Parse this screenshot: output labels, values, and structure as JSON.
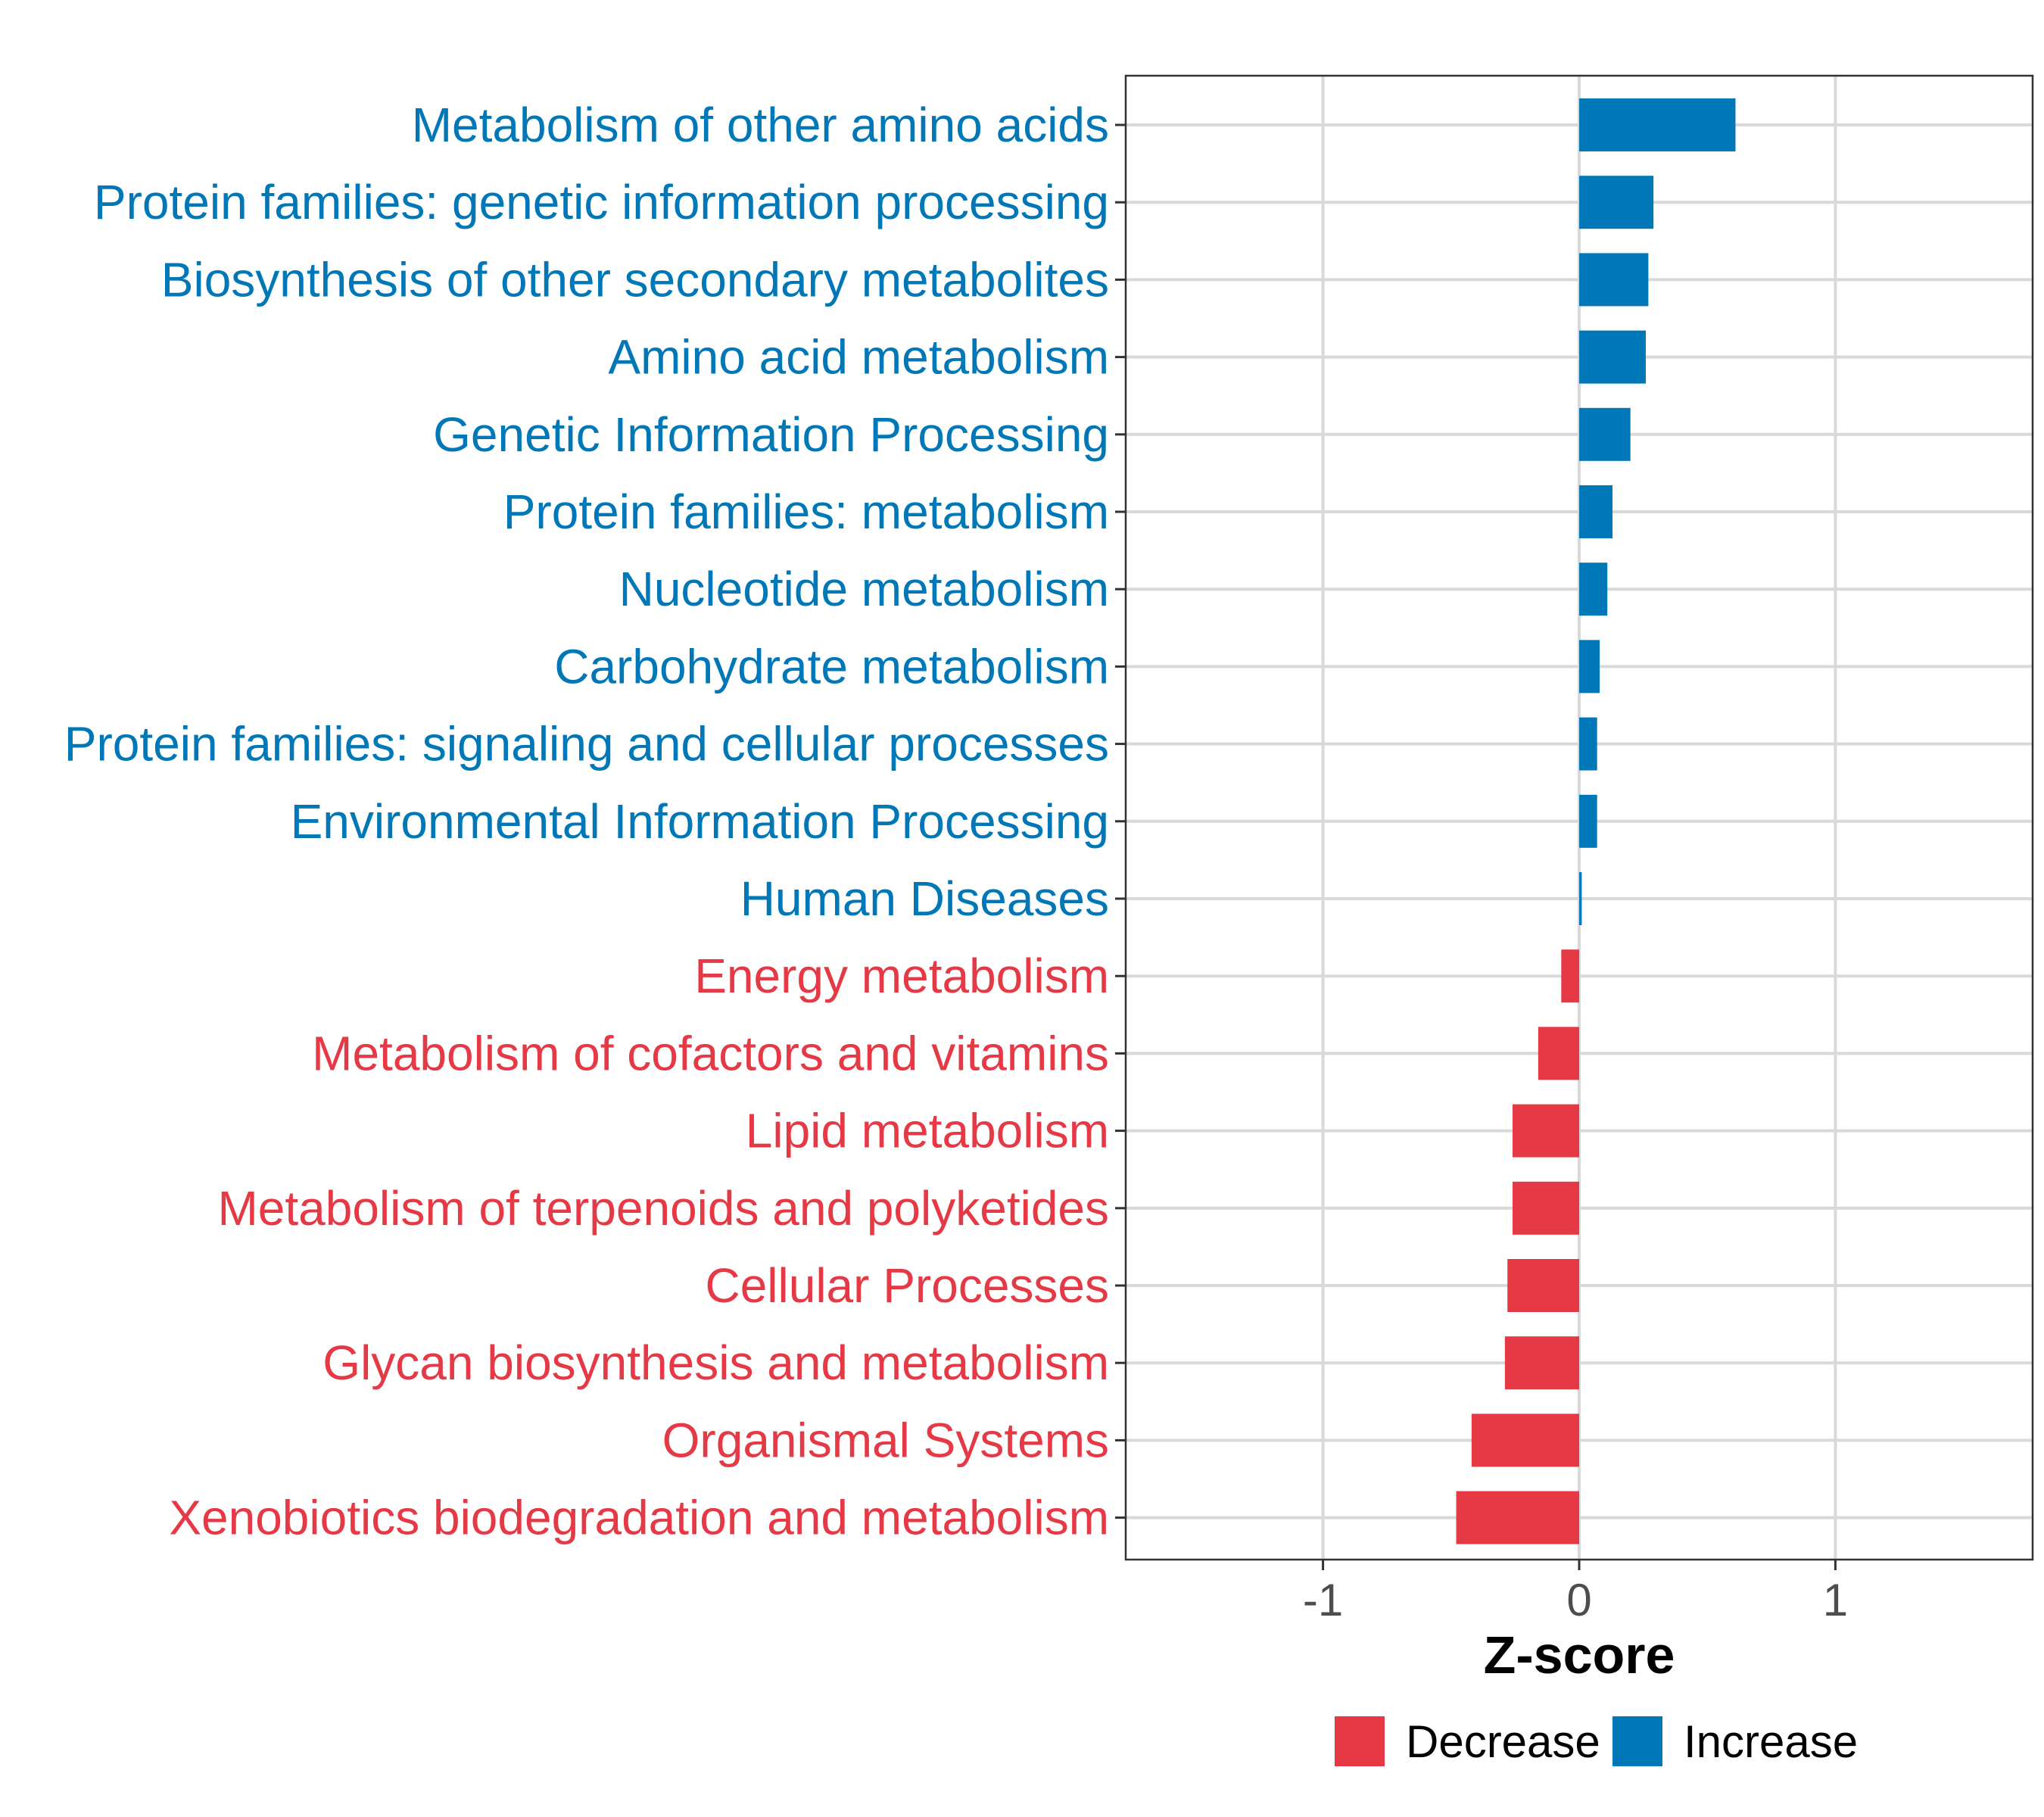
{
  "chart_data": {
    "type": "bar",
    "orientation": "horizontal",
    "categories": [
      "Metabolism of other amino acids",
      "Protein families: genetic information processing",
      "Biosynthesis of other secondary metabolites",
      "Amino acid metabolism",
      "Genetic Information Processing",
      "Protein families: metabolism",
      "Nucleotide metabolism",
      "Carbohydrate metabolism",
      "Protein families: signaling and cellular processes",
      "Environmental Information Processing",
      "Human Diseases",
      "Energy metabolism",
      "Metabolism of cofactors and vitamins",
      "Lipid metabolism",
      "Metabolism of terpenoids and polyketides",
      "Cellular Processes",
      "Glycan biosynthesis and metabolism",
      "Organismal Systems",
      "Xenobiotics biodegradation and metabolism"
    ],
    "values": [
      0.61,
      0.29,
      0.27,
      0.26,
      0.2,
      0.13,
      0.11,
      0.08,
      0.07,
      0.07,
      0.01,
      -0.07,
      -0.16,
      -0.26,
      -0.26,
      -0.28,
      -0.29,
      -0.42,
      -0.48
    ],
    "groups": [
      "Increase",
      "Increase",
      "Increase",
      "Increase",
      "Increase",
      "Increase",
      "Increase",
      "Increase",
      "Increase",
      "Increase",
      "Increase",
      "Decrease",
      "Decrease",
      "Decrease",
      "Decrease",
      "Decrease",
      "Decrease",
      "Decrease",
      "Decrease"
    ],
    "title": "",
    "xlabel": "Z-score",
    "ylabel": "",
    "xlim": [
      -1.77,
      1.77
    ],
    "xticks": [
      -1,
      0,
      1
    ],
    "xtick_labels": [
      "-1",
      "0",
      "1"
    ],
    "grid": true,
    "legend": {
      "position": "bottom",
      "entries": [
        {
          "label": "Decrease",
          "color": "#E63946"
        },
        {
          "label": "Increase",
          "color": "#0077B6"
        }
      ]
    },
    "colors": {
      "Decrease": "#E63946",
      "Increase": "#0077B6"
    }
  }
}
